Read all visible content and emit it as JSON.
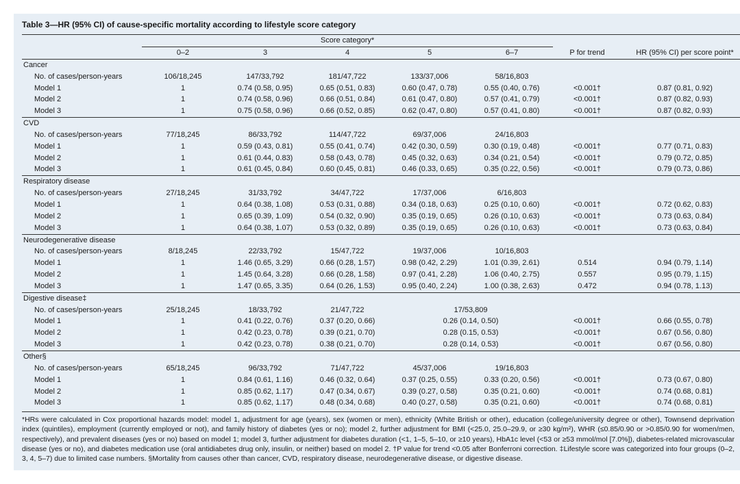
{
  "title": "Table 3—HR (95% CI) of cause-specific mortality according to lifestyle score category",
  "header": {
    "score_label": "Score category*",
    "cols": [
      "0–2",
      "3",
      "4",
      "5",
      "6–7"
    ],
    "ptrend": "P for trend",
    "hr_per_point": "HR (95% CI) per score point*"
  },
  "row_labels": {
    "npy": "No. of cases/person-years",
    "m1": "Model 1",
    "m2": "Model 2",
    "m3": "Model 3"
  },
  "sections": [
    {
      "name": "Cancer",
      "npy": [
        "106/18,245",
        "147/33,792",
        "181/47,722",
        "133/37,006",
        "58/16,803"
      ],
      "m1": [
        "1",
        "0.74 (0.58, 0.95)",
        "0.65 (0.51, 0.83)",
        "0.60 (0.47, 0.78)",
        "0.55 (0.40, 0.76)",
        "<0.001†",
        "0.87 (0.81, 0.92)"
      ],
      "m2": [
        "1",
        "0.74 (0.58, 0.96)",
        "0.66 (0.51, 0.84)",
        "0.61 (0.47, 0.80)",
        "0.57 (0.41, 0.79)",
        "<0.001†",
        "0.87 (0.82, 0.93)"
      ],
      "m3": [
        "1",
        "0.75 (0.58, 0.96)",
        "0.66 (0.52, 0.85)",
        "0.62 (0.47, 0.80)",
        "0.57 (0.41, 0.80)",
        "<0.001†",
        "0.87 (0.82, 0.93)"
      ]
    },
    {
      "name": "CVD",
      "npy": [
        "77/18,245",
        "86/33,792",
        "114/47,722",
        "69/37,006",
        "24/16,803"
      ],
      "m1": [
        "1",
        "0.59 (0.43, 0.81)",
        "0.55 (0.41, 0.74)",
        "0.42 (0.30, 0.59)",
        "0.30 (0.19, 0.48)",
        "<0.001†",
        "0.77 (0.71, 0.83)"
      ],
      "m2": [
        "1",
        "0.61 (0.44, 0.83)",
        "0.58 (0.43, 0.78)",
        "0.45 (0.32, 0.63)",
        "0.34 (0.21, 0.54)",
        "<0.001†",
        "0.79 (0.72, 0.85)"
      ],
      "m3": [
        "1",
        "0.61 (0.45, 0.84)",
        "0.60 (0.45, 0.81)",
        "0.46 (0.33, 0.65)",
        "0.35 (0.22, 0.56)",
        "<0.001†",
        "0.79 (0.73, 0.86)"
      ]
    },
    {
      "name": "Respiratory disease",
      "npy": [
        "27/18,245",
        "31/33,792",
        "34/47,722",
        "17/37,006",
        "6/16,803"
      ],
      "m1": [
        "1",
        "0.64 (0.38, 1.08)",
        "0.53 (0.31, 0.88)",
        "0.34 (0.18, 0.63)",
        "0.25 (0.10, 0.60)",
        "<0.001†",
        "0.72 (0.62, 0.83)"
      ],
      "m2": [
        "1",
        "0.65 (0.39, 1.09)",
        "0.54 (0.32, 0.90)",
        "0.35 (0.19, 0.65)",
        "0.26 (0.10, 0.63)",
        "<0.001†",
        "0.73 (0.63, 0.84)"
      ],
      "m3": [
        "1",
        "0.64 (0.38, 1.07)",
        "0.53 (0.32, 0.89)",
        "0.35 (0.19, 0.65)",
        "0.26 (0.10, 0.63)",
        "<0.001†",
        "0.73 (0.63, 0.84)"
      ]
    },
    {
      "name": "Neurodegenerative disease",
      "npy": [
        "8/18,245",
        "22/33,792",
        "15/47,722",
        "19/37,006",
        "10/16,803"
      ],
      "m1": [
        "1",
        "1.46 (0.65, 3.29)",
        "0.66 (0.28, 1.57)",
        "0.98 (0.42, 2.29)",
        "1.01 (0.39, 2.61)",
        "0.514",
        "0.94 (0.79, 1.14)"
      ],
      "m2": [
        "1",
        "1.45 (0.64, 3.28)",
        "0.66 (0.28, 1.58)",
        "0.97 (0.41, 2.28)",
        "1.06 (0.40, 2.75)",
        "0.557",
        "0.95 (0.79, 1.15)"
      ],
      "m3": [
        "1",
        "1.47 (0.65, 3.35)",
        "0.64 (0.26, 1.53)",
        "0.95 (0.40, 2.24)",
        "1.00 (0.38, 2.63)",
        "0.472",
        "0.94 (0.78, 1.13)"
      ]
    },
    {
      "name": "Digestive disease‡",
      "merged45": true,
      "npy": [
        "25/18,245",
        "18/33,792",
        "21/47,722",
        "17/53,809"
      ],
      "m1": [
        "1",
        "0.41 (0.22, 0.76)",
        "0.37 (0.20, 0.66)",
        "0.26 (0.14, 0.50)",
        "<0.001†",
        "0.66 (0.55, 0.78)"
      ],
      "m2": [
        "1",
        "0.42 (0.23, 0.78)",
        "0.39 (0.21, 0.70)",
        "0.28 (0.15, 0.53)",
        "<0.001†",
        "0.67 (0.56, 0.80)"
      ],
      "m3": [
        "1",
        "0.42 (0.23, 0.78)",
        "0.38 (0.21, 0.70)",
        "0.28 (0.14, 0.53)",
        "<0.001†",
        "0.67 (0.56, 0.80)"
      ]
    },
    {
      "name": "Other§",
      "npy": [
        "65/18,245",
        "96/33,792",
        "71/47,722",
        "45/37,006",
        "19/16,803"
      ],
      "m1": [
        "1",
        "0.84 (0.61, 1.16)",
        "0.46 (0.32, 0.64)",
        "0.37 (0.25, 0.55)",
        "0.33 (0.20, 0.56)",
        "<0.001†",
        "0.73 (0.67, 0.80)"
      ],
      "m2": [
        "1",
        "0.85 (0.62, 1.17)",
        "0.47 (0.34, 0.67)",
        "0.39 (0.27, 0.58)",
        "0.35 (0.21, 0.60)",
        "<0.001†",
        "0.74 (0.68, 0.81)"
      ],
      "m3": [
        "1",
        "0.85 (0.62, 1.17)",
        "0.48 (0.34, 0.68)",
        "0.40 (0.27, 0.58)",
        "0.35 (0.21, 0.60)",
        "<0.001†",
        "0.74 (0.68, 0.81)"
      ]
    }
  ],
  "footnote": "*HRs were calculated in Cox proportional hazards model: model 1, adjustment for age (years), sex (women or men), ethnicity (White British or other), education (college/university degree or other), Townsend deprivation index (quintiles), employment (currently employed or not), and family history of diabetes (yes or no); model 2, further adjustment for BMI (<25.0, 25.0–29.9, or ≥30 kg/m²), WHR (≤0.85/0.90 or >0.85/0.90 for women/men, respectively), and prevalent diseases (yes or no) based on model 1; model 3, further adjustment for diabetes duration (<1, 1–5, 5–10, or ≥10 years), HbA1c level (<53 or ≥53 mmol/mol [7.0%]), diabetes-related microvascular disease (yes or no), and diabetes medication use (oral antidiabetes drug only, insulin, or neither) based on model 2. †P value for trend <0.05 after Bonferroni correction. ‡Lifestyle score was categorized into four groups (0–2, 3, 4, 5–7) due to limited case numbers. §Mortality from causes other than cancer, CVD, respiratory disease, neurodegenerative disease, or digestive disease."
}
